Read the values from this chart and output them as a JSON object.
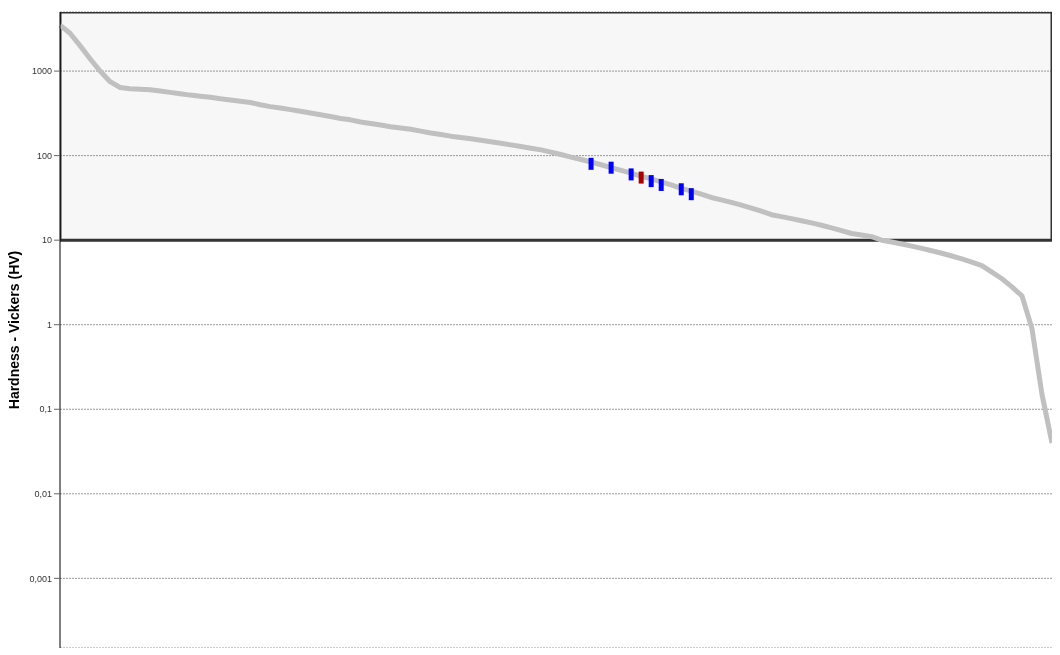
{
  "chart_data": {
    "type": "line",
    "ylabel": "Hardness - Vickers (HV)",
    "log": "y",
    "grid": "y",
    "tick_labels": "y",
    "legend": false,
    "ylim": [
      0.00015,
      5000
    ],
    "yticks": [
      {
        "value": 0.001,
        "label": "0,001"
      },
      {
        "value": 0.01,
        "label": "0,01"
      },
      {
        "value": 0.1,
        "label": "0,1"
      },
      1,
      10,
      100,
      1000
    ],
    "categories": [
      null,
      null,
      null,
      null,
      null,
      null,
      null,
      null,
      null,
      null,
      null,
      null,
      null,
      null,
      null,
      null,
      null,
      null,
      null,
      null,
      null,
      null,
      null,
      null,
      null,
      null,
      null,
      null,
      null,
      null,
      null,
      null,
      null,
      null,
      null,
      null,
      null,
      null,
      null,
      null,
      null,
      null,
      null,
      null,
      null,
      null,
      null,
      null,
      null,
      null,
      null,
      null,
      null,
      null,
      null,
      null,
      null,
      null,
      null,
      null,
      null,
      null,
      null,
      null,
      null,
      null,
      null,
      null,
      null,
      null,
      null,
      null,
      null,
      null,
      null,
      null,
      null,
      null,
      null,
      null,
      null,
      null,
      null,
      null,
      null,
      null,
      null,
      null,
      null,
      null,
      null,
      null,
      null,
      null,
      null,
      null,
      null,
      null,
      null,
      null
    ],
    "bands": [
      {
        "axis": "y",
        "from": 10,
        "to": 5000,
        "color": "#333333"
      }
    ],
    "series": [
      {
        "color": "#c0c0c0",
        "values": [
          3500,
          2800,
          2000,
          1400,
          1000,
          750,
          640,
          620,
          610,
          600,
          580,
          560,
          540,
          520,
          505,
          490,
          470,
          455,
          440,
          425,
          400,
          380,
          365,
          350,
          335,
          320,
          305,
          290,
          275,
          265,
          250,
          240,
          230,
          220,
          212,
          205,
          195,
          185,
          178,
          170,
          164,
          158,
          152,
          146,
          140,
          134,
          128,
          122,
          117,
          110,
          103,
          96,
          90,
          84,
          78,
          72,
          67,
          62,
          57,
          53,
          49,
          45,
          41,
          38,
          35,
          32,
          30,
          28,
          26,
          24,
          22,
          20,
          19,
          18,
          17,
          16,
          15,
          14,
          13,
          12,
          11.5,
          11,
          10,
          9.5,
          9,
          8.5,
          8,
          7.5,
          7,
          6.5,
          6,
          5.5,
          5,
          4.2,
          3.5,
          2.8,
          2.2,
          0.9,
          0.15,
          0.04
        ]
      },
      {
        "type": "scatter",
        "color": "#0000ff",
        "marker": "square",
        "values": [
          null,
          null,
          null,
          null,
          null,
          null,
          null,
          null,
          null,
          null,
          null,
          null,
          null,
          null,
          null,
          null,
          null,
          null,
          null,
          null,
          null,
          null,
          null,
          null,
          null,
          null,
          null,
          null,
          null,
          null,
          null,
          null,
          null,
          null,
          null,
          null,
          null,
          null,
          null,
          null,
          null,
          null,
          null,
          null,
          null,
          null,
          null,
          null,
          null,
          null,
          null,
          null,
          null,
          80,
          null,
          72,
          null,
          60,
          null,
          50,
          45,
          null,
          40,
          35,
          null,
          null,
          null,
          null,
          null,
          null,
          null,
          null,
          null,
          null,
          null,
          null,
          null,
          null,
          null,
          null,
          null,
          null,
          null,
          null,
          null,
          null,
          null,
          null,
          null,
          null,
          null,
          null,
          null,
          null,
          null,
          null,
          null,
          null,
          null,
          null
        ]
      },
      {
        "type": "scatter",
        "color": "#aa0000",
        "marker": "square",
        "values": [
          null,
          null,
          null,
          null,
          null,
          null,
          null,
          null,
          null,
          null,
          null,
          null,
          null,
          null,
          null,
          null,
          null,
          null,
          null,
          null,
          null,
          null,
          null,
          null,
          null,
          null,
          null,
          null,
          null,
          null,
          null,
          null,
          null,
          null,
          null,
          null,
          null,
          null,
          null,
          null,
          null,
          null,
          null,
          null,
          null,
          null,
          null,
          null,
          null,
          null,
          null,
          null,
          null,
          null,
          null,
          null,
          null,
          null,
          55,
          null,
          null,
          null,
          null,
          null,
          null,
          null,
          null,
          null,
          null,
          null,
          null,
          null,
          null,
          null,
          null,
          null,
          null,
          null,
          null,
          null,
          null,
          null,
          null,
          null,
          null,
          null,
          null,
          null,
          null,
          null,
          null,
          null,
          null,
          null,
          null,
          null,
          null,
          null,
          null,
          null
        ]
      }
    ]
  }
}
